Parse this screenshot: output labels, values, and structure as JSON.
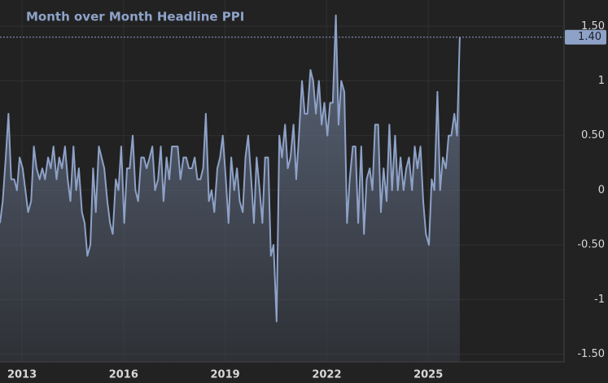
{
  "chart_data": {
    "type": "area",
    "title": "Month over Month Headline PPI",
    "color": "#8ea2c8",
    "x": [
      2012.35,
      2012.43,
      2012.52,
      2012.6,
      2012.68,
      2012.77,
      2012.85,
      2012.93,
      2013.02,
      2013.1,
      2013.18,
      2013.27,
      2013.35,
      2013.43,
      2013.52,
      2013.6,
      2013.68,
      2013.77,
      2013.85,
      2013.93,
      2014.02,
      2014.1,
      2014.18,
      2014.27,
      2014.35,
      2014.43,
      2014.52,
      2014.6,
      2014.68,
      2014.77,
      2014.85,
      2014.93,
      2015.02,
      2015.1,
      2015.18,
      2015.27,
      2015.35,
      2015.43,
      2015.52,
      2015.6,
      2015.68,
      2015.77,
      2015.85,
      2015.93,
      2016.02,
      2016.1,
      2016.18,
      2016.27,
      2016.35,
      2016.43,
      2016.52,
      2016.6,
      2016.68,
      2016.77,
      2016.85,
      2016.93,
      2017.02,
      2017.1,
      2017.18,
      2017.27,
      2017.35,
      2017.43,
      2017.52,
      2017.6,
      2017.68,
      2017.77,
      2017.85,
      2017.93,
      2018.02,
      2018.1,
      2018.18,
      2018.27,
      2018.35,
      2018.43,
      2018.52,
      2018.6,
      2018.68,
      2018.77,
      2018.85,
      2018.93,
      2019.02,
      2019.1,
      2019.18,
      2019.27,
      2019.35,
      2019.43,
      2019.52,
      2019.6,
      2019.68,
      2019.77,
      2019.85,
      2019.93,
      2020.02,
      2020.1,
      2020.18,
      2020.27,
      2020.35,
      2020.43,
      2020.52,
      2020.6,
      2020.68,
      2020.77,
      2020.85,
      2020.93,
      2021.02,
      2021.1,
      2021.18,
      2021.27,
      2021.35,
      2021.43,
      2021.52,
      2021.6,
      2021.68,
      2021.77,
      2021.85,
      2021.93,
      2022.02,
      2022.1,
      2022.18,
      2022.27,
      2022.35,
      2022.43,
      2022.52,
      2022.6,
      2022.68,
      2022.77,
      2022.85,
      2022.93,
      2023.02,
      2023.1,
      2023.18,
      2023.27,
      2023.35,
      2023.43,
      2023.52,
      2023.6,
      2023.68,
      2023.77,
      2023.85,
      2023.93,
      2024.02,
      2024.1,
      2024.18,
      2024.27,
      2024.35,
      2024.43,
      2024.52,
      2024.6,
      2024.68,
      2024.77,
      2024.85,
      2024.93,
      2025.02,
      2025.1,
      2025.18,
      2025.27,
      2025.35,
      2025.43,
      2025.52,
      2025.6,
      2025.68,
      2025.77,
      2025.85,
      2025.93
    ],
    "values": [
      -0.3,
      -0.1,
      0.3,
      0.7,
      0.1,
      0.1,
      0.0,
      0.3,
      0.2,
      0.0,
      -0.2,
      -0.1,
      0.4,
      0.2,
      0.1,
      0.2,
      0.1,
      0.3,
      0.2,
      0.4,
      0.1,
      0.3,
      0.2,
      0.4,
      0.1,
      -0.1,
      0.4,
      0.0,
      0.2,
      -0.2,
      -0.3,
      -0.6,
      -0.5,
      0.2,
      -0.2,
      0.4,
      0.3,
      0.2,
      -0.1,
      -0.3,
      -0.4,
      0.1,
      0.0,
      0.4,
      -0.3,
      0.2,
      0.2,
      0.5,
      0.0,
      -0.1,
      0.3,
      0.3,
      0.2,
      0.3,
      0.4,
      0.0,
      0.1,
      0.4,
      -0.1,
      0.3,
      0.1,
      0.4,
      0.4,
      0.4,
      0.1,
      0.3,
      0.3,
      0.2,
      0.2,
      0.3,
      0.1,
      0.1,
      0.2,
      0.7,
      -0.1,
      0.0,
      -0.2,
      0.2,
      0.3,
      0.5,
      0.1,
      -0.3,
      0.3,
      0.0,
      0.2,
      -0.1,
      -0.2,
      0.3,
      0.5,
      0.1,
      -0.3,
      0.3,
      0.0,
      -0.3,
      0.3,
      0.3,
      -0.6,
      -0.5,
      -1.2,
      0.5,
      0.3,
      0.6,
      0.2,
      0.3,
      0.6,
      0.1,
      0.5,
      1.0,
      0.7,
      0.7,
      1.1,
      1.0,
      0.7,
      1.0,
      0.6,
      0.8,
      0.5,
      0.8,
      0.8,
      1.6,
      0.6,
      1.0,
      0.9,
      -0.3,
      0.1,
      0.4,
      0.4,
      -0.3,
      0.4,
      -0.4,
      0.1,
      0.2,
      0.0,
      0.6,
      0.6,
      -0.2,
      0.2,
      -0.1,
      0.6,
      0.0,
      0.5,
      0.0,
      0.3,
      0.0,
      0.2,
      0.3,
      0.0,
      0.4,
      0.2,
      0.4,
      -0.1,
      -0.4,
      -0.5,
      0.1,
      0.0,
      0.9,
      0.0,
      0.3,
      0.2,
      0.5,
      0.5,
      0.7,
      0.5,
      1.4
    ],
    "last_label": "1.40",
    "xlim": [
      2012.35,
      2029.01
    ],
    "xticks": [
      2013,
      2016,
      2019,
      2022,
      2025
    ],
    "ylim": [
      -1.57,
      1.74
    ],
    "yticks": [
      {
        "value": 1.5,
        "label": "1.50"
      },
      1,
      {
        "value": 0.5,
        "label": "0.50"
      },
      0,
      {
        "value": -0.5,
        "label": "-0.50"
      },
      -1,
      {
        "value": -1.5,
        "label": "-1.50"
      }
    ],
    "grid": true
  }
}
